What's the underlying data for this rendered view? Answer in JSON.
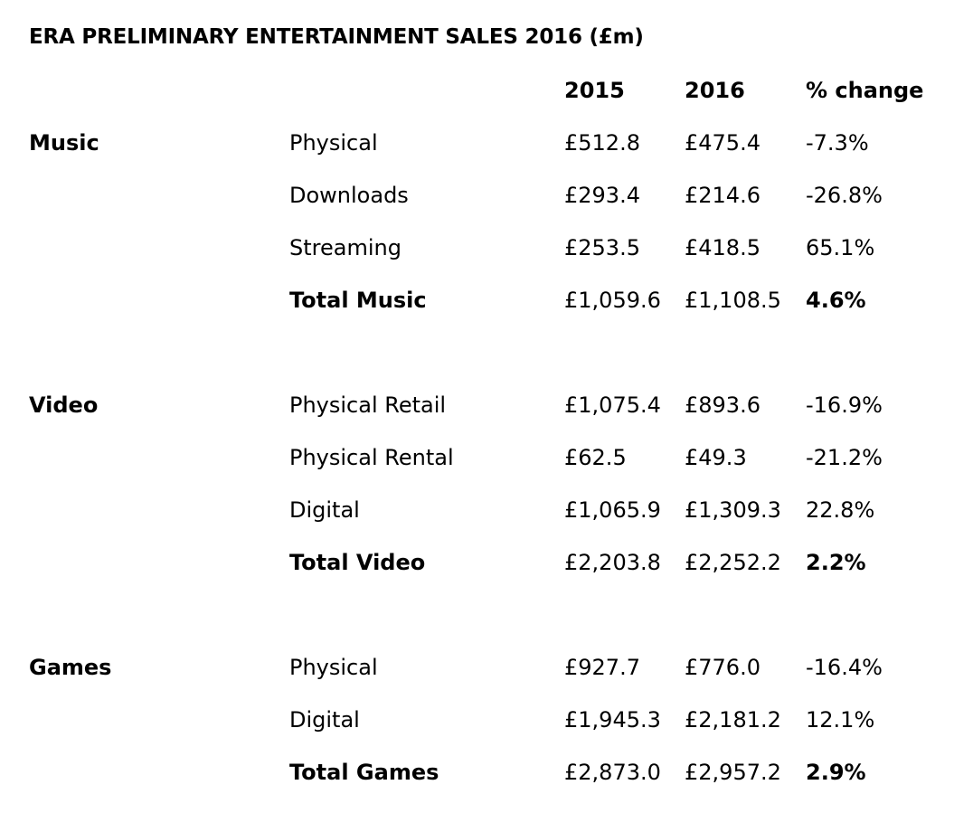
{
  "title": "ERA PRELIMINARY ENTERTAINMENT SALES 2016 (£m)",
  "columns": {
    "year1": "2015",
    "year2": "2016",
    "change": "% change"
  },
  "sections": [
    {
      "name": "Music",
      "rows": [
        {
          "label": "Physical",
          "v2015": "£512.8",
          "v2016": "£475.4",
          "change": "-7.3%"
        },
        {
          "label": "Downloads",
          "v2015": "£293.4",
          "v2016": "£214.6",
          "change": "-26.8%"
        },
        {
          "label": "Streaming",
          "v2015": "£253.5",
          "v2016": "£418.5",
          "change": "65.1%"
        },
        {
          "label": "Total Music",
          "v2015": "£1,059.6",
          "v2016": "£1,108.5",
          "change": "4.6%"
        }
      ]
    },
    {
      "name": "Video",
      "rows": [
        {
          "label": "Physical Retail",
          "v2015": "£1,075.4",
          "v2016": "£893.6",
          "change": "-16.9%"
        },
        {
          "label": "Physical Rental",
          "v2015": "£62.5",
          "v2016": "£49.3",
          "change": "-21.2%"
        },
        {
          "label": "Digital",
          "v2015": "£1,065.9",
          "v2016": "£1,309.3",
          "change": "22.8%"
        },
        {
          "label": "Total Video",
          "v2015": "£2,203.8",
          "v2016": "£2,252.2",
          "change": "2.2%"
        }
      ]
    },
    {
      "name": "Games",
      "rows": [
        {
          "label": "Physical",
          "v2015": "£927.7",
          "v2016": "£776.0",
          "change": "-16.4%"
        },
        {
          "label": "Digital",
          "v2015": "£1,945.3",
          "v2016": "£2,181.2",
          "change": "12.1%"
        },
        {
          "label": "Total Games",
          "v2015": "£2,873.0",
          "v2016": "£2,957.2",
          "change": "2.9%"
        }
      ]
    }
  ]
}
